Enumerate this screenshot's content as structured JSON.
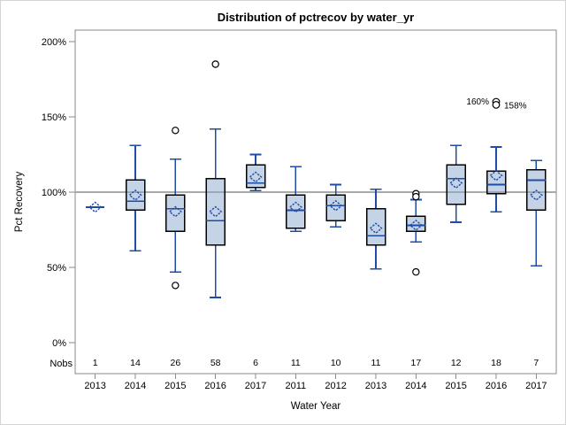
{
  "title": "Distribution of pctrecov by water_yr",
  "y_axis": {
    "label": "Pct Recovery",
    "ticks": [
      {
        "label": "200%",
        "value": 200
      },
      {
        "label": "150%",
        "value": 150
      },
      {
        "label": "100%",
        "value": 100
      },
      {
        "label": "50%",
        "value": 50
      },
      {
        "label": "0%",
        "value": 0
      }
    ]
  },
  "x_axis": {
    "label": "Water Year"
  },
  "nobs": {
    "label": "Nobs"
  },
  "colors": {
    "box_fill": "#8ba7cd",
    "box_fill_opacity": 0.5,
    "box_border": "#000000",
    "blue": "#1e4ca6",
    "reference_line": "#a9a9a9",
    "frame": "#8a8a8a",
    "outer_border": "#d2d6d9",
    "outlier_stroke": "#000000",
    "text": "#000000"
  },
  "chart_data": {
    "type": "box",
    "title": "Distribution of pctrecov by water_yr",
    "xlabel": "Water Year",
    "ylabel": "Pct Recovery",
    "ylim": [
      0,
      200
    ],
    "y_unit": "%",
    "reference_line": 100,
    "grid": false,
    "categories": [
      "2013",
      "2014",
      "2015",
      "2016",
      "2017",
      "2011",
      "2012",
      "2013",
      "2014",
      "2015",
      "2016",
      "2017"
    ],
    "nobs": [
      1,
      14,
      26,
      58,
      6,
      11,
      10,
      11,
      17,
      12,
      18,
      7
    ],
    "boxes": [
      {
        "year": "2013",
        "nobs": 1,
        "single_value": 90,
        "median": 90,
        "mean": 90,
        "outliers": []
      },
      {
        "year": "2014",
        "nobs": 14,
        "whisker_low": 61,
        "q1": 88,
        "median": 94,
        "q3": 108,
        "whisker_high": 131,
        "mean": 98,
        "outliers": []
      },
      {
        "year": "2015",
        "nobs": 26,
        "whisker_low": 47,
        "q1": 74,
        "median": 89,
        "q3": 98,
        "whisker_high": 122,
        "mean": 87,
        "outliers": [
          141,
          38
        ]
      },
      {
        "year": "2016",
        "nobs": 58,
        "whisker_low": 30,
        "q1": 65,
        "median": 81,
        "q3": 109,
        "whisker_high": 142,
        "mean": 87,
        "outliers": [
          185
        ]
      },
      {
        "year": "2017",
        "nobs": 6,
        "whisker_low": 101,
        "q1": 103,
        "median": 106,
        "q3": 118,
        "whisker_high": 125,
        "mean": 110,
        "outliers": []
      },
      {
        "year": "2011",
        "nobs": 11,
        "whisker_low": 74,
        "q1": 76,
        "median": 88,
        "q3": 98,
        "whisker_high": 117,
        "mean": 90,
        "outliers": []
      },
      {
        "year": "2012",
        "nobs": 10,
        "whisker_low": 77,
        "q1": 81,
        "median": 91,
        "q3": 98,
        "whisker_high": 105,
        "mean": 91,
        "outliers": []
      },
      {
        "year": "2013",
        "nobs": 11,
        "whisker_low": 49,
        "q1": 65,
        "median": 71,
        "q3": 89,
        "whisker_high": 102,
        "mean": 76,
        "outliers": []
      },
      {
        "year": "2014",
        "nobs": 17,
        "whisker_low": 67,
        "q1": 74,
        "median": 78,
        "q3": 84,
        "whisker_high": 95,
        "mean": 78,
        "outliers": [
          99,
          97,
          47
        ]
      },
      {
        "year": "2015",
        "nobs": 12,
        "whisker_low": 80,
        "q1": 92,
        "median": 109,
        "q3": 118,
        "whisker_high": 131,
        "mean": 106,
        "outliers": []
      },
      {
        "year": "2016",
        "nobs": 18,
        "whisker_low": 87,
        "q1": 99,
        "median": 105,
        "q3": 114,
        "whisker_high": 130,
        "mean": 111,
        "outliers": [],
        "labeled_outliers": [
          {
            "value": 160,
            "label": "160%",
            "label_side": "left"
          },
          {
            "value": 158,
            "label": "158%",
            "label_side": "right"
          }
        ]
      },
      {
        "year": "2017",
        "nobs": 7,
        "whisker_low": 51,
        "q1": 88,
        "median": 108,
        "q3": 115,
        "whisker_high": 121,
        "mean": 98,
        "outliers": []
      }
    ]
  }
}
